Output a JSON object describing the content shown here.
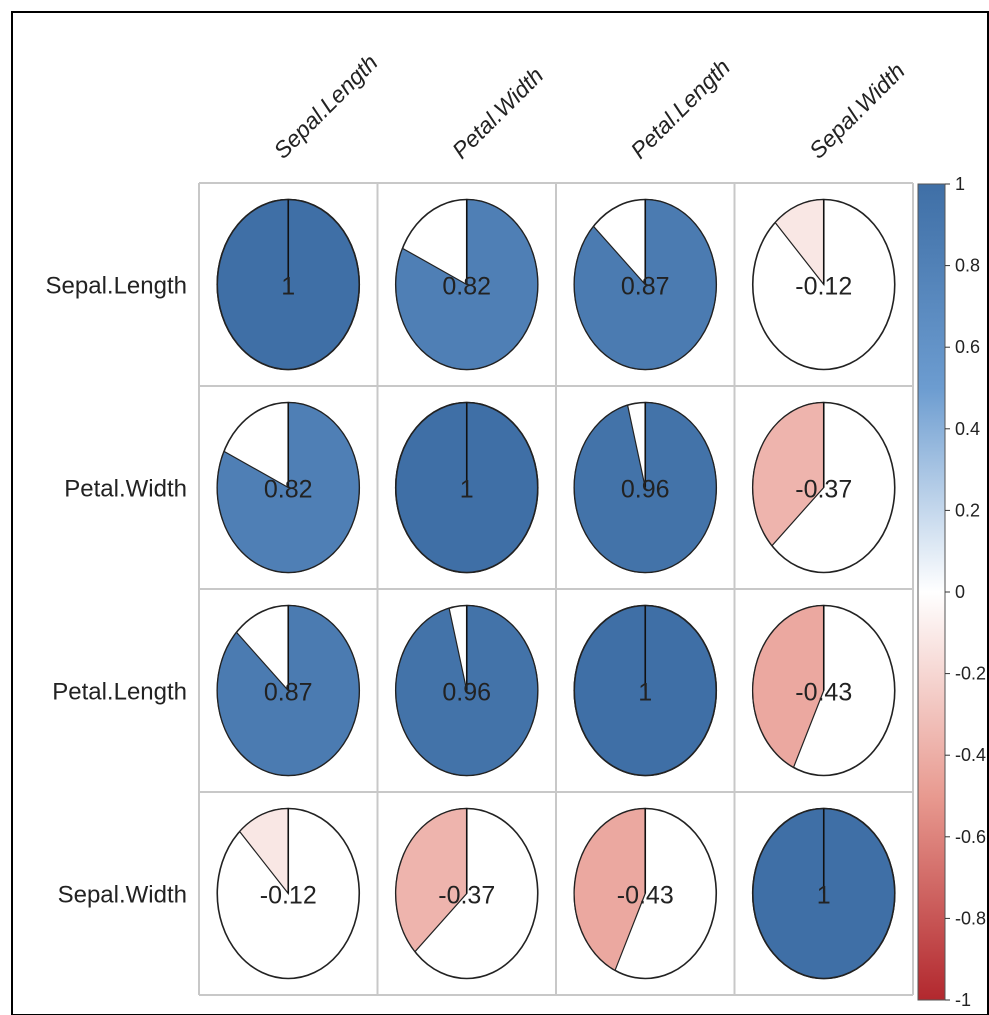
{
  "chart_data": {
    "type": "heatmap",
    "method": "pie",
    "variables": [
      "Sepal.Length",
      "Petal.Width",
      "Petal.Length",
      "Sepal.Width"
    ],
    "matrix": [
      [
        1,
        0.82,
        0.87,
        -0.12
      ],
      [
        0.82,
        1,
        0.96,
        -0.37
      ],
      [
        0.87,
        0.96,
        1,
        -0.43
      ],
      [
        -0.12,
        -0.37,
        -0.43,
        1
      ]
    ],
    "cell_labels": [
      [
        "1",
        "0.82",
        "0.87",
        "-0.12"
      ],
      [
        "0.82",
        "1",
        "0.96",
        "-0.37"
      ],
      [
        "0.87",
        "0.96",
        "1",
        "-0.43"
      ],
      [
        "-0.12",
        "-0.37",
        "-0.43",
        "1"
      ]
    ],
    "colorbar": {
      "range": [
        -1,
        1
      ],
      "ticks": [
        1,
        0.8,
        0.6,
        0.4,
        0.2,
        0,
        -0.2,
        -0.4,
        -0.6,
        -0.8,
        -1
      ],
      "tick_labels": [
        "1",
        "0.8",
        "0.6",
        "0.4",
        "0.2",
        "0",
        "-0.2",
        "-0.4",
        "-0.6",
        "-0.8",
        "-1"
      ],
      "colors": {
        "pos_1": "#3F6FA6",
        "pos_mid": "#6C9CD0",
        "zero": "#FFFFFF",
        "neg_mid": "#E89A90",
        "neg_1": "#B2282E"
      }
    },
    "grid": true,
    "legend_position": "right"
  }
}
